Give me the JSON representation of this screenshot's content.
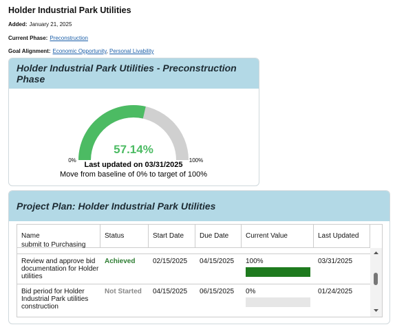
{
  "header": {
    "title": "Holder Industrial Park Utilities"
  },
  "meta": [
    {
      "label": "Added:",
      "text": "January 21, 2025"
    },
    {
      "label": "Current Phase:",
      "links": [
        "Preconstruction"
      ]
    },
    {
      "label": "Goal Alignment:",
      "links": [
        "Economic Opportunity",
        "Personal Livability"
      ]
    }
  ],
  "gauge_card": {
    "title": "Holder Industrial Park Utilities - Preconstruction Phase",
    "value": 57.14,
    "value_label": "57.14%",
    "min": 0,
    "max": 100,
    "min_label": "0%",
    "max_label": "100%",
    "updated": "Last updated on 03/31/2025",
    "note": "Move from baseline of 0% to target of 100%",
    "fill_color": "#4cbb63",
    "track_color": "#d0d0d0"
  },
  "plan_card": {
    "title": "Project Plan: Holder Industrial Park Utilities",
    "table": {
      "headers": [
        "Name",
        "Status",
        "Start Date",
        "Due Date",
        "Current Value",
        "Last Updated"
      ],
      "rows": [
        {
          "name": "submit to Purchasing"
        },
        {
          "name": "Review and approve bid documentation for Holder utilities",
          "status": "Achieved",
          "start": "02/15/2025",
          "due": "04/15/2025",
          "current_value": "100%",
          "progress": 100,
          "updated": "03/31/2025"
        },
        {
          "name": "Bid period for Holder Industrial Park utilities construction",
          "status": "Not Started",
          "start": "04/15/2025",
          "due": "06/15/2025",
          "current_value": "0%",
          "progress": 0,
          "updated": "01/24/2025"
        }
      ]
    }
  }
}
